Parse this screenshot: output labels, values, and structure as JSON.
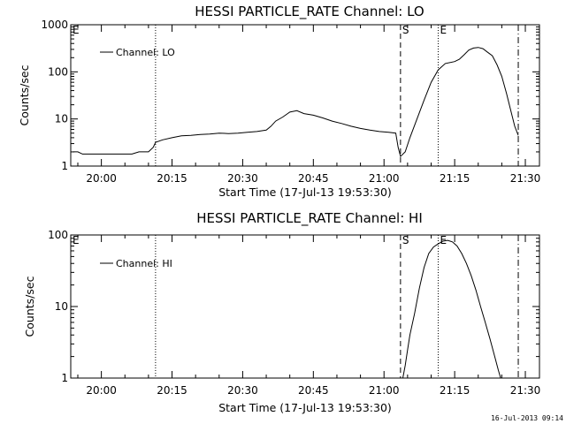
{
  "footer": {
    "timestamp": "16-Jul-2013 09:14"
  },
  "chart_data": [
    {
      "type": "line",
      "title": "HESSI PARTICLE_RATE Channel: LO",
      "xlabel": "Start Time (17-Jul-13 19:53:30)",
      "ylabel": "Counts/sec",
      "y_scale": "log",
      "xlim": [
        "19:53:30",
        "21:33:00"
      ],
      "ylim": [
        1,
        1000
      ],
      "x_ticks": [
        "20:00",
        "20:15",
        "20:30",
        "20:45",
        "21:00",
        "21:15",
        "21:30"
      ],
      "y_ticks": [
        "1",
        "10",
        "100",
        "1000"
      ],
      "legend": {
        "position": "top-left",
        "entries": [
          "Channel: LO"
        ]
      },
      "markers": [
        {
          "time": "20:11:30",
          "label": "",
          "style": "dotted"
        },
        {
          "time": "21:03:30",
          "label": "S",
          "style": "dashed"
        },
        {
          "time": "21:11:30",
          "label": "E",
          "style": "dotted"
        },
        {
          "time": "21:28:30",
          "label": "",
          "style": "dash-dot"
        }
      ],
      "corner_label": "E",
      "series": [
        {
          "name": "Channel: LO",
          "segments": [
            [
              [
                "19:54:00",
                2
              ],
              [
                "19:55:00",
                2
              ],
              [
                "19:56:00",
                1.8
              ],
              [
                "19:57:30",
                1.8
              ],
              [
                "19:59:00",
                1.8
              ],
              [
                "20:00:30",
                1.8
              ],
              [
                "20:02:00",
                1.8
              ],
              [
                "20:03:30",
                1.8
              ],
              [
                "20:05:00",
                1.8
              ],
              [
                "20:06:30",
                1.8
              ],
              [
                "20:08:00",
                2
              ],
              [
                "20:09:00",
                2
              ],
              [
                "20:10:00",
                2
              ],
              [
                "20:11:00",
                2.5
              ],
              [
                "20:11:30",
                3.2
              ],
              [
                "20:13:00",
                3.6
              ],
              [
                "20:15:00",
                4.0
              ],
              [
                "20:17:00",
                4.4
              ],
              [
                "20:19:00",
                4.5
              ],
              [
                "20:21:00",
                4.7
              ],
              [
                "20:23:00",
                4.8
              ],
              [
                "20:25:00",
                5.0
              ],
              [
                "20:27:00",
                4.9
              ],
              [
                "20:29:00",
                5.0
              ],
              [
                "20:31:00",
                5.2
              ],
              [
                "20:33:00",
                5.4
              ],
              [
                "20:35:00",
                5.8
              ],
              [
                "20:36:00",
                7.0
              ],
              [
                "20:37:00",
                9.0
              ],
              [
                "20:38:30",
                11.0
              ],
              [
                "20:40:00",
                14.0
              ],
              [
                "20:41:30",
                15.0
              ],
              [
                "20:43:00",
                13.0
              ],
              [
                "20:45:00",
                12.0
              ],
              [
                "20:47:00",
                10.5
              ],
              [
                "20:49:00",
                9.0
              ],
              [
                "20:51:00",
                8.0
              ],
              [
                "20:53:00",
                7.0
              ],
              [
                "20:55:00",
                6.3
              ],
              [
                "20:57:00",
                5.8
              ],
              [
                "20:59:00",
                5.4
              ],
              [
                "21:01:00",
                5.2
              ],
              [
                "21:02:30",
                5.0
              ],
              [
                "21:03:00",
                2.5
              ],
              [
                "21:03:30",
                1.6
              ],
              [
                "21:04:30",
                2.0
              ],
              [
                "21:05:30",
                4.0
              ],
              [
                "21:07:00",
                10.0
              ],
              [
                "21:08:30",
                25.0
              ],
              [
                "21:10:00",
                60.0
              ],
              [
                "21:11:30",
                110.0
              ],
              [
                "21:13:00",
                150.0
              ],
              [
                "21:15:00",
                165.0
              ],
              [
                "21:16:00",
                185.0
              ],
              [
                "21:17:00",
                230.0
              ],
              [
                "21:18:00",
                290.0
              ],
              [
                "21:19:00",
                320.0
              ],
              [
                "21:20:00",
                330.0
              ],
              [
                "21:21:00",
                310.0
              ],
              [
                "21:22:00",
                260.0
              ],
              [
                "21:23:00",
                220.0
              ],
              [
                "21:24:00",
                140.0
              ],
              [
                "21:25:00",
                80.0
              ],
              [
                "21:26:00",
                35.0
              ],
              [
                "21:27:00",
                14.0
              ],
              [
                "21:27:45",
                7.0
              ],
              [
                "21:28:30",
                4.5
              ]
            ]
          ]
        }
      ]
    },
    {
      "type": "line",
      "title": "HESSI PARTICLE_RATE Channel: HI",
      "xlabel": "Start Time (17-Jul-13 19:53:30)",
      "ylabel": "Counts/sec",
      "y_scale": "log",
      "xlim": [
        "19:53:30",
        "21:33:00"
      ],
      "ylim": [
        1,
        100
      ],
      "x_ticks": [
        "20:00",
        "20:15",
        "20:30",
        "20:45",
        "21:00",
        "21:15",
        "21:30"
      ],
      "y_ticks": [
        "1",
        "10",
        "100"
      ],
      "legend": {
        "position": "top-left",
        "entries": [
          "Channel: HI"
        ]
      },
      "markers": [
        {
          "time": "20:11:30",
          "label": "",
          "style": "dotted"
        },
        {
          "time": "21:03:30",
          "label": "S",
          "style": "dashed"
        },
        {
          "time": "21:11:30",
          "label": "E",
          "style": "dotted"
        },
        {
          "time": "21:28:30",
          "label": "",
          "style": "dash-dot"
        }
      ],
      "corner_label": "E",
      "series": [
        {
          "name": "Channel: HI",
          "segments": [
            [
              [
                "21:04:00",
                1.0
              ],
              [
                "21:04:30",
                1.5
              ],
              [
                "21:05:00",
                2.5
              ],
              [
                "21:05:30",
                4.0
              ],
              [
                "21:06:30",
                8.0
              ],
              [
                "21:07:30",
                18.0
              ],
              [
                "21:08:30",
                35.0
              ],
              [
                "21:09:30",
                55.0
              ],
              [
                "21:10:30",
                68.0
              ],
              [
                "21:11:30",
                75.0
              ],
              [
                "21:12:30",
                82.0
              ],
              [
                "21:13:30",
                84.0
              ],
              [
                "21:14:30",
                80.0
              ],
              [
                "21:15:30",
                70.0
              ],
              [
                "21:16:30",
                55.0
              ],
              [
                "21:17:30",
                40.0
              ],
              [
                "21:18:30",
                27.0
              ],
              [
                "21:19:30",
                17.0
              ],
              [
                "21:20:30",
                10.0
              ],
              [
                "21:21:30",
                6.0
              ],
              [
                "21:22:30",
                3.5
              ],
              [
                "21:23:30",
                2.0
              ],
              [
                "21:24:15",
                1.3
              ],
              [
                "21:24:45",
                1.0
              ]
            ]
          ]
        }
      ]
    }
  ]
}
